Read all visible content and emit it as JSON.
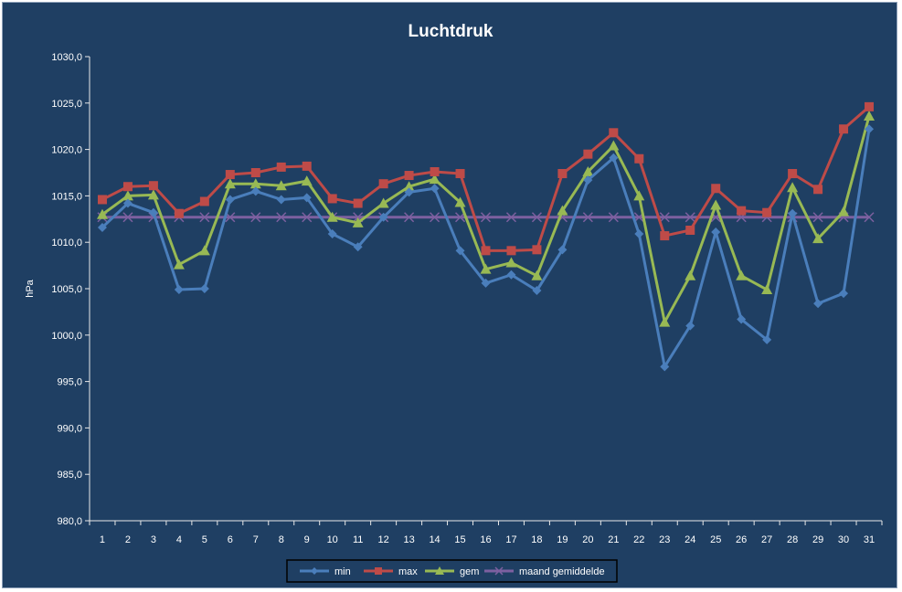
{
  "chart_data": {
    "type": "line",
    "title": "Luchtdruk",
    "xlabel": "",
    "ylabel": "hPa",
    "ylim": [
      980,
      1030
    ],
    "y_ticks": [
      "980,0",
      "985,0",
      "990,0",
      "995,0",
      "1000,0",
      "1005,0",
      "1010,0",
      "1015,0",
      "1020,0",
      "1025,0",
      "1030,0"
    ],
    "x": [
      "1",
      "2",
      "3",
      "4",
      "5",
      "6",
      "7",
      "8",
      "9",
      "10",
      "11",
      "12",
      "13",
      "14",
      "15",
      "16",
      "17",
      "18",
      "19",
      "20",
      "21",
      "22",
      "23",
      "24",
      "25",
      "26",
      "27",
      "28",
      "29",
      "30",
      "31"
    ],
    "grid": false,
    "legend_position": "bottom",
    "series": [
      {
        "name": "min",
        "color": "#4a7ebb",
        "marker": "diamond",
        "values": [
          1011.6,
          1014.2,
          1013.2,
          1004.9,
          1005.0,
          1014.6,
          1015.5,
          1014.6,
          1014.8,
          1010.9,
          1009.5,
          1012.7,
          1015.4,
          1015.8,
          1009.1,
          1005.6,
          1006.5,
          1004.8,
          1009.2,
          1016.7,
          1019.1,
          1010.9,
          996.6,
          1001.0,
          1011.1,
          1001.7,
          999.5,
          1013.1,
          1003.4,
          1004.5,
          1022.2
        ]
      },
      {
        "name": "max",
        "color": "#be4b48",
        "marker": "square",
        "values": [
          1014.6,
          1016.0,
          1016.1,
          1013.1,
          1014.4,
          1017.3,
          1017.5,
          1018.1,
          1018.2,
          1014.7,
          1014.2,
          1016.3,
          1017.2,
          1017.6,
          1017.4,
          1009.1,
          1009.1,
          1009.2,
          1017.4,
          1019.5,
          1021.8,
          1019.0,
          1010.7,
          1011.3,
          1015.8,
          1013.4,
          1013.2,
          1017.4,
          1015.7,
          1022.2,
          1024.6
        ]
      },
      {
        "name": "gem",
        "color": "#98b954",
        "marker": "triangle",
        "values": [
          1013.0,
          1015.0,
          1015.1,
          1007.6,
          1009.1,
          1016.3,
          1016.3,
          1016.1,
          1016.6,
          1012.7,
          1012.1,
          1014.2,
          1016.0,
          1016.8,
          1014.3,
          1007.1,
          1007.8,
          1006.4,
          1013.4,
          1017.6,
          1020.4,
          1015.0,
          1001.4,
          1006.4,
          1014.0,
          1006.4,
          1004.9,
          1015.9,
          1010.4,
          1013.3,
          1023.6
        ]
      },
      {
        "name": "maand gemiddelde",
        "color": "#7d60a0",
        "marker": "x",
        "values": [
          1012.7,
          1012.7,
          1012.7,
          1012.7,
          1012.7,
          1012.7,
          1012.7,
          1012.7,
          1012.7,
          1012.7,
          1012.7,
          1012.7,
          1012.7,
          1012.7,
          1012.7,
          1012.7,
          1012.7,
          1012.7,
          1012.7,
          1012.7,
          1012.7,
          1012.7,
          1012.7,
          1012.7,
          1012.7,
          1012.7,
          1012.7,
          1012.7,
          1012.7,
          1012.7,
          1012.7
        ]
      }
    ]
  }
}
